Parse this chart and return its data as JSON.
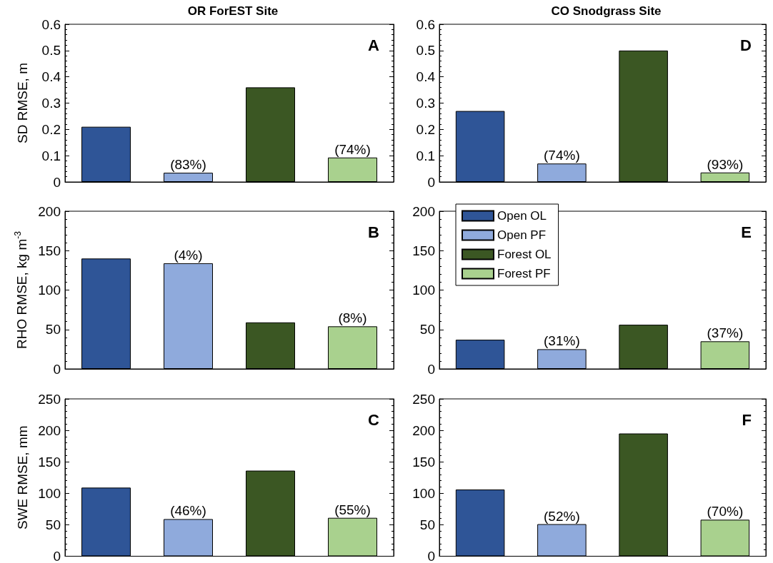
{
  "chart_data": [
    {
      "type": "bar",
      "title": "OR ForEST Site",
      "ylabel": "SD RMSE, m",
      "annotations": [
        "A",
        {
          "text": "(83%)",
          "y": 0.035
        },
        {
          "text": "(74%)",
          "y": 0.093
        }
      ],
      "categories": [
        null,
        null,
        null,
        null
      ],
      "ylim": [
        0,
        0.6
      ],
      "yticks": [
        0,
        0.1,
        0.2,
        0.3,
        0.4,
        0.5,
        0.6
      ],
      "tick_labels": "y",
      "legend": false,
      "series": [
        {
          "color": "#2f5597",
          "values": [
            0.21,
            null,
            null,
            null
          ]
        },
        {
          "color": "#8faadc",
          "values": [
            null,
            0.035,
            null,
            null
          ]
        },
        {
          "color": "#3b5723",
          "values": [
            null,
            null,
            0.36,
            null
          ]
        },
        {
          "color": "#a9d18e",
          "values": [
            null,
            null,
            null,
            0.093
          ]
        }
      ]
    },
    {
      "type": "bar",
      "title": "CO Snodgrass Site",
      "annotations": [
        "D",
        {
          "text": "(74%)",
          "y": 0.07
        },
        {
          "text": "(93%)",
          "y": 0.036
        }
      ],
      "categories": [
        null,
        null,
        null,
        null
      ],
      "ylim": [
        0,
        0.6
      ],
      "yticks": [
        0,
        0.1,
        0.2,
        0.3,
        0.4,
        0.5,
        0.6
      ],
      "tick_labels": "y",
      "legend": false,
      "series": [
        {
          "color": "#2f5597",
          "values": [
            0.27,
            null,
            null,
            null
          ]
        },
        {
          "color": "#8faadc",
          "values": [
            null,
            0.07,
            null,
            null
          ]
        },
        {
          "color": "#3b5723",
          "values": [
            null,
            null,
            0.5,
            null
          ]
        },
        {
          "color": "#a9d18e",
          "values": [
            null,
            null,
            null,
            0.036
          ]
        }
      ]
    },
    {
      "type": "bar",
      "ylabel": "RHO RMSE, kg m$^{-3}$",
      "annotations": [
        "B",
        {
          "text": "(4%)",
          "y": 134
        },
        {
          "text": "(8%)",
          "y": 54
        }
      ],
      "categories": [
        null,
        null,
        null,
        null
      ],
      "ylim": [
        0,
        200
      ],
      "yticks": [
        0,
        50,
        100,
        150,
        200
      ],
      "tick_labels": "y",
      "legend": false,
      "series": [
        {
          "color": "#2f5597",
          "values": [
            140,
            null,
            null,
            null
          ]
        },
        {
          "color": "#8faadc",
          "values": [
            null,
            134,
            null,
            null
          ]
        },
        {
          "color": "#3b5723",
          "values": [
            null,
            null,
            59,
            null
          ]
        },
        {
          "color": "#a9d18e",
          "values": [
            null,
            null,
            null,
            54
          ]
        }
      ]
    },
    {
      "type": "bar",
      "annotations": [
        "E",
        {
          "text": "(31%)",
          "y": 25
        },
        {
          "text": "(37%)",
          "y": 35
        }
      ],
      "categories": [
        null,
        null,
        null,
        null
      ],
      "ylim": [
        0,
        200
      ],
      "yticks": [
        0,
        50,
        100,
        150,
        200
      ],
      "tick_labels": "y",
      "legend": "top left",
      "series": [
        {
          "name": "Open OL",
          "color": "#2f5597",
          "values": [
            37,
            null,
            null,
            null
          ]
        },
        {
          "name": "Open PF",
          "color": "#8faadc",
          "values": [
            null,
            25,
            null,
            null
          ]
        },
        {
          "name": "Forest OL",
          "color": "#3b5723",
          "values": [
            null,
            null,
            56,
            null
          ]
        },
        {
          "name": "Forest PF",
          "color": "#a9d18e",
          "values": [
            null,
            null,
            null,
            35
          ]
        }
      ]
    },
    {
      "type": "bar",
      "ylabel": "SWE RMSE, mm",
      "annotations": [
        "C",
        {
          "text": "(46%)",
          "y": 59
        },
        {
          "text": "(55%)",
          "y": 61
        }
      ],
      "categories": [
        null,
        null,
        null,
        null
      ],
      "ylim": [
        0,
        250
      ],
      "yticks": [
        0,
        50,
        100,
        150,
        200,
        250
      ],
      "tick_labels": "y",
      "legend": false,
      "series": [
        {
          "color": "#2f5597",
          "values": [
            109,
            null,
            null,
            null
          ]
        },
        {
          "color": "#8faadc",
          "values": [
            null,
            59,
            null,
            null
          ]
        },
        {
          "color": "#3b5723",
          "values": [
            null,
            null,
            136,
            null
          ]
        },
        {
          "color": "#a9d18e",
          "values": [
            null,
            null,
            null,
            61
          ]
        }
      ]
    },
    {
      "type": "bar",
      "annotations": [
        "F",
        {
          "text": "(52%)",
          "y": 51
        },
        {
          "text": "(70%)",
          "y": 58
        }
      ],
      "categories": [
        null,
        null,
        null,
        null
      ],
      "ylim": [
        0,
        250
      ],
      "yticks": [
        0,
        50,
        100,
        150,
        200,
        250
      ],
      "tick_labels": "y",
      "legend": false,
      "series": [
        {
          "color": "#2f5597",
          "values": [
            106,
            null,
            null,
            null
          ]
        },
        {
          "color": "#8faadc",
          "values": [
            null,
            51,
            null,
            null
          ]
        },
        {
          "color": "#3b5723",
          "values": [
            null,
            null,
            195,
            null
          ]
        },
        {
          "color": "#a9d18e",
          "values": [
            null,
            null,
            null,
            58
          ]
        }
      ]
    }
  ]
}
